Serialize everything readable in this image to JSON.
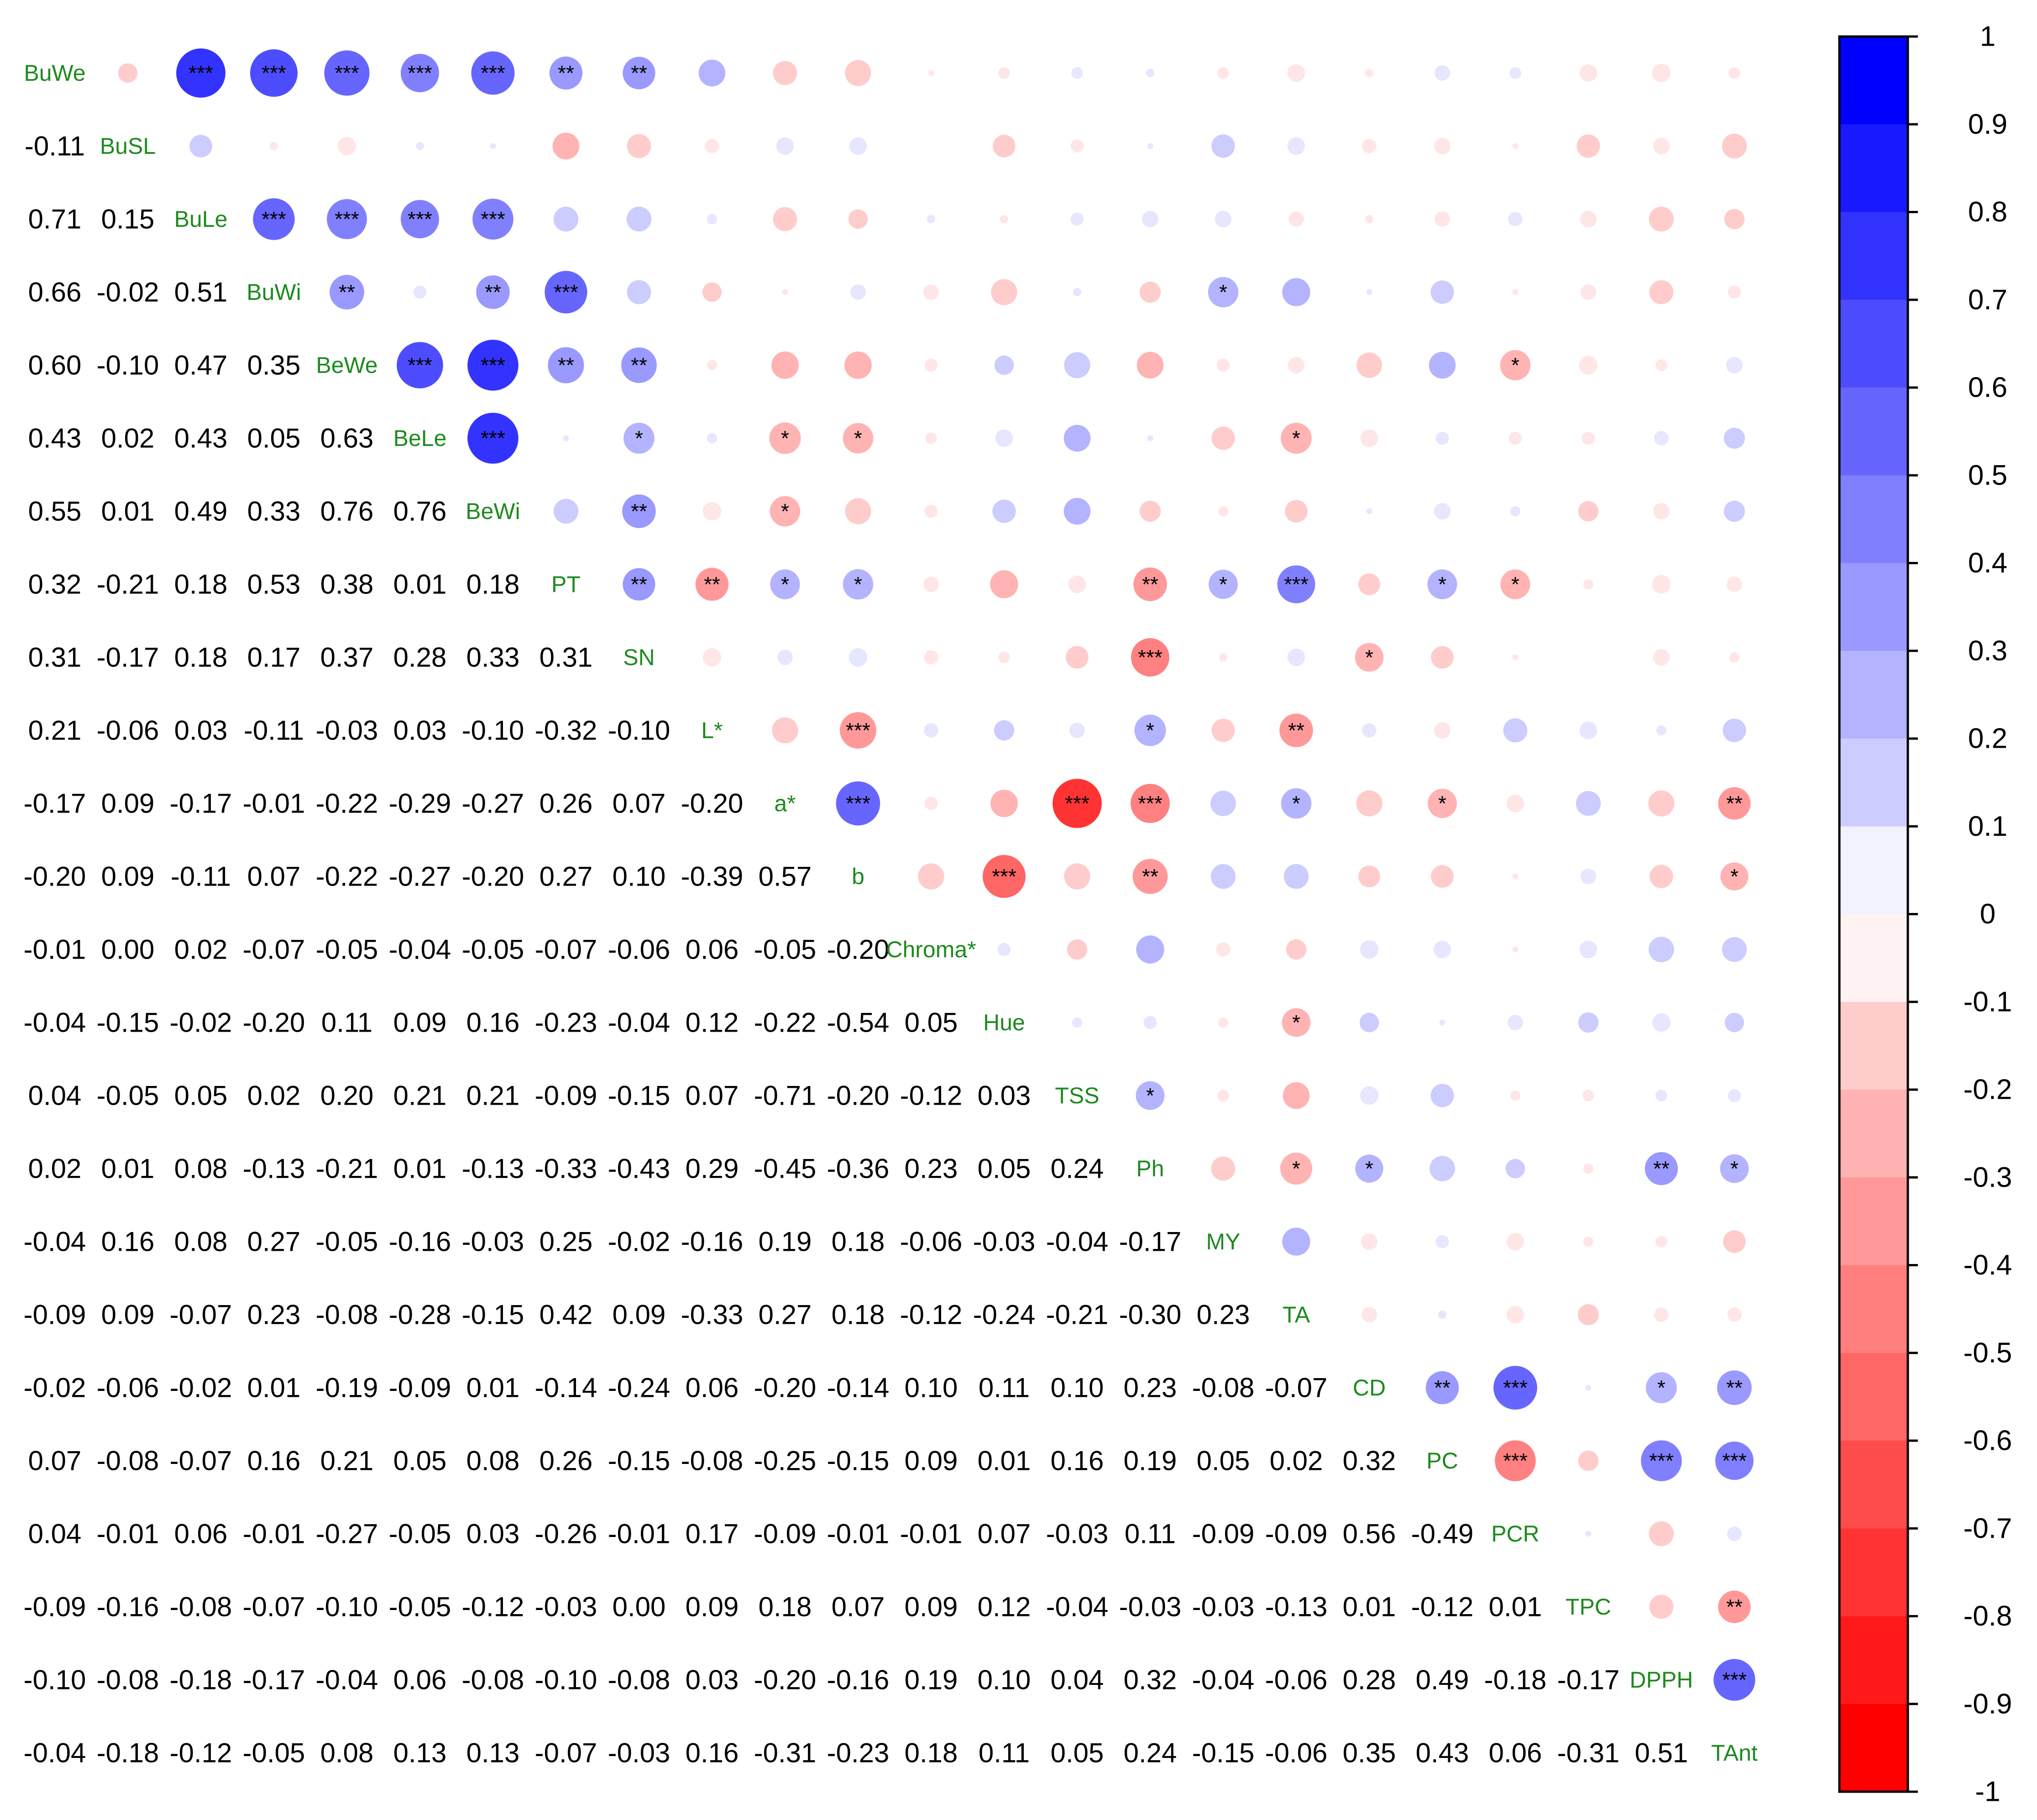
{
  "chart_data": {
    "type": "heatmap",
    "subtype": "correlation-matrix",
    "upper_triangle": "circles",
    "lower_triangle": "numbers",
    "variables": [
      "BuWe",
      "BuSL",
      "BuLe",
      "BuWi",
      "BeWe",
      "BeLe",
      "BeWi",
      "PT",
      "SN",
      "L*",
      "a*",
      "b",
      "Chroma*",
      "Hue",
      "TSS",
      "Ph",
      "MY",
      "TA",
      "CD",
      "PC",
      "PCR",
      "TPC",
      "DPPH",
      "TAnt"
    ],
    "lower": [
      [],
      [
        "-0.11"
      ],
      [
        "0.71",
        "0.15"
      ],
      [
        "0.66",
        "-0.02",
        "0.51"
      ],
      [
        "0.60",
        "-0.10",
        "0.47",
        "0.35"
      ],
      [
        "0.43",
        "0.02",
        "0.43",
        "0.05",
        "0.63"
      ],
      [
        "0.55",
        "0.01",
        "0.49",
        "0.33",
        "0.76",
        "0.76"
      ],
      [
        "0.32",
        "-0.21",
        "0.18",
        "0.53",
        "0.38",
        "0.01",
        "0.18"
      ],
      [
        "0.31",
        "-0.17",
        "0.18",
        "0.17",
        "0.37",
        "0.28",
        "0.33",
        "0.31"
      ],
      [
        "0.21",
        "-0.06",
        "0.03",
        "-0.11",
        "-0.03",
        "0.03",
        "-0.10",
        "-0.32",
        "-0.10"
      ],
      [
        "-0.17",
        "0.09",
        "-0.17",
        "-0.01",
        "-0.22",
        "-0.29",
        "-0.27",
        "0.26",
        "0.07",
        "-0.20"
      ],
      [
        "-0.20",
        "0.09",
        "-0.11",
        "0.07",
        "-0.22",
        "-0.27",
        "-0.20",
        "0.27",
        "0.10",
        "-0.39",
        "0.57"
      ],
      [
        "-0.01",
        "0.00",
        "0.02",
        "-0.07",
        "-0.05",
        "-0.04",
        "-0.05",
        "-0.07",
        "-0.06",
        "0.06",
        "-0.05",
        "-0.20"
      ],
      [
        "-0.04",
        "-0.15",
        "-0.02",
        "-0.20",
        "0.11",
        "0.09",
        "0.16",
        "-0.23",
        "-0.04",
        "0.12",
        "-0.22",
        "-0.54",
        "0.05"
      ],
      [
        "0.04",
        "-0.05",
        "0.05",
        "0.02",
        "0.20",
        "0.21",
        "0.21",
        "-0.09",
        "-0.15",
        "0.07",
        "-0.71",
        "-0.20",
        "-0.12",
        "0.03"
      ],
      [
        "0.02",
        "0.01",
        "0.08",
        "-0.13",
        "-0.21",
        "0.01",
        "-0.13",
        "-0.33",
        "-0.43",
        "0.29",
        "-0.45",
        "-0.36",
        "0.23",
        "0.05",
        "0.24"
      ],
      [
        "-0.04",
        "0.16",
        "0.08",
        "0.27",
        "-0.05",
        "-0.16",
        "-0.03",
        "0.25",
        "-0.02",
        "-0.16",
        "0.19",
        "0.18",
        "-0.06",
        "-0.03",
        "-0.04",
        "-0.17"
      ],
      [
        "-0.09",
        "0.09",
        "-0.07",
        "0.23",
        "-0.08",
        "-0.28",
        "-0.15",
        "0.42",
        "0.09",
        "-0.33",
        "0.27",
        "0.18",
        "-0.12",
        "-0.24",
        "-0.21",
        "-0.30",
        "0.23"
      ],
      [
        "-0.02",
        "-0.06",
        "-0.02",
        "0.01",
        "-0.19",
        "-0.09",
        "0.01",
        "-0.14",
        "-0.24",
        "0.06",
        "-0.20",
        "-0.14",
        "0.10",
        "0.11",
        "0.10",
        "0.23",
        "-0.08",
        "-0.07"
      ],
      [
        "0.07",
        "-0.08",
        "-0.07",
        "0.16",
        "0.21",
        "0.05",
        "0.08",
        "0.26",
        "-0.15",
        "-0.08",
        "-0.25",
        "-0.15",
        "0.09",
        "0.01",
        "0.16",
        "0.19",
        "0.05",
        "0.02",
        "0.32"
      ],
      [
        "0.04",
        "-0.01",
        "0.06",
        "-0.01",
        "-0.27",
        "-0.05",
        "0.03",
        "-0.26",
        "-0.01",
        "0.17",
        "-0.09",
        "-0.01",
        "-0.01",
        "0.07",
        "-0.03",
        "0.11",
        "-0.09",
        "-0.09",
        "0.56",
        "-0.49"
      ],
      [
        "-0.09",
        "-0.16",
        "-0.08",
        "-0.07",
        "-0.10",
        "-0.05",
        "-0.12",
        "-0.03",
        "0.00",
        "0.09",
        "0.18",
        "0.07",
        "0.09",
        "0.12",
        "-0.04",
        "-0.03",
        "-0.03",
        "-0.13",
        "0.01",
        "-0.12",
        "0.01"
      ],
      [
        "-0.10",
        "-0.08",
        "-0.18",
        "-0.17",
        "-0.04",
        "0.06",
        "-0.08",
        "-0.10",
        "-0.08",
        "0.03",
        "-0.20",
        "-0.16",
        "0.19",
        "0.10",
        "0.04",
        "0.32",
        "-0.04",
        "-0.06",
        "0.28",
        "0.49",
        "-0.18",
        "-0.17"
      ],
      [
        "-0.04",
        "-0.18",
        "-0.12",
        "-0.05",
        "0.08",
        "0.13",
        "0.13",
        "-0.07",
        "-0.03",
        "0.16",
        "-0.31",
        "-0.23",
        "0.18",
        "0.11",
        "0.05",
        "0.24",
        "-0.15",
        "-0.06",
        "0.35",
        "0.43",
        "0.06",
        "-0.31",
        "0.51"
      ]
    ],
    "significance": [
      [
        "BuWe",
        "BuLe",
        "***"
      ],
      [
        "BuWe",
        "BuWi",
        "***"
      ],
      [
        "BuWe",
        "BeWe",
        "***"
      ],
      [
        "BuWe",
        "BeLe",
        "***"
      ],
      [
        "BuWe",
        "BeWi",
        "***"
      ],
      [
        "BuWe",
        "PT",
        "**"
      ],
      [
        "BuWe",
        "SN",
        "**"
      ],
      [
        "BuLe",
        "BuWi",
        "***"
      ],
      [
        "BuLe",
        "BeWe",
        "***"
      ],
      [
        "BuLe",
        "BeLe",
        "***"
      ],
      [
        "BuLe",
        "BeWi",
        "***"
      ],
      [
        "BuWi",
        "BeWe",
        "**"
      ],
      [
        "BuWi",
        "BeWi",
        "**"
      ],
      [
        "BuWi",
        "PT",
        "***"
      ],
      [
        "BuWi",
        "MY",
        "*"
      ],
      [
        "BeWe",
        "BeLe",
        "***"
      ],
      [
        "BeWe",
        "BeWi",
        "***"
      ],
      [
        "BeWe",
        "PT",
        "**"
      ],
      [
        "BeWe",
        "SN",
        "**"
      ],
      [
        "BeWe",
        "PCR",
        "*"
      ],
      [
        "BeLe",
        "BeWi",
        "***"
      ],
      [
        "BeLe",
        "SN",
        "*"
      ],
      [
        "BeLe",
        "a*",
        "*"
      ],
      [
        "BeLe",
        "b",
        "*"
      ],
      [
        "BeLe",
        "TA",
        "*"
      ],
      [
        "BeWi",
        "SN",
        "**"
      ],
      [
        "BeWi",
        "a*",
        "*"
      ],
      [
        "PT",
        "SN",
        "**"
      ],
      [
        "PT",
        "L*",
        "**"
      ],
      [
        "PT",
        "a*",
        "*"
      ],
      [
        "PT",
        "b",
        "*"
      ],
      [
        "PT",
        "Ph",
        "**"
      ],
      [
        "PT",
        "MY",
        "*"
      ],
      [
        "PT",
        "TA",
        "***"
      ],
      [
        "PT",
        "PC",
        "*"
      ],
      [
        "PT",
        "PCR",
        "*"
      ],
      [
        "SN",
        "Ph",
        "***"
      ],
      [
        "SN",
        "CD",
        "*"
      ],
      [
        "L*",
        "b",
        "***"
      ],
      [
        "L*",
        "Ph",
        "*"
      ],
      [
        "L*",
        "TA",
        "**"
      ],
      [
        "a*",
        "b",
        "***"
      ],
      [
        "a*",
        "TSS",
        "***"
      ],
      [
        "a*",
        "Ph",
        "***"
      ],
      [
        "a*",
        "TA",
        "*"
      ],
      [
        "a*",
        "PC",
        "*"
      ],
      [
        "a*",
        "TAnt",
        "**"
      ],
      [
        "b",
        "Hue",
        "***"
      ],
      [
        "b",
        "Ph",
        "**"
      ],
      [
        "b",
        "TAnt",
        "*"
      ],
      [
        "Hue",
        "TA",
        "*"
      ],
      [
        "TSS",
        "Ph",
        "*"
      ],
      [
        "Ph",
        "TA",
        "*"
      ],
      [
        "Ph",
        "CD",
        "*"
      ],
      [
        "Ph",
        "DPPH",
        "**"
      ],
      [
        "Ph",
        "TAnt",
        "*"
      ],
      [
        "CD",
        "PC",
        "**"
      ],
      [
        "CD",
        "PCR",
        "***"
      ],
      [
        "CD",
        "DPPH",
        "*"
      ],
      [
        "CD",
        "TAnt",
        "**"
      ],
      [
        "PC",
        "PCR",
        "***"
      ],
      [
        "PC",
        "DPPH",
        "***"
      ],
      [
        "PC",
        "TAnt",
        "***"
      ],
      [
        "TPC",
        "TAnt",
        "**"
      ],
      [
        "DPPH",
        "TAnt",
        "***"
      ]
    ],
    "colorbar": {
      "ticks": [
        "1",
        "0.9",
        "0.8",
        "0.7",
        "0.6",
        "0.5",
        "0.4",
        "0.3",
        "0.2",
        "0.1",
        "0",
        "-0.1",
        "-0.2",
        "-0.3",
        "-0.4",
        "-0.5",
        "-0.6",
        "-0.7",
        "-0.8",
        "-0.9",
        "-1"
      ],
      "range": [
        -1,
        1
      ],
      "bins": 20
    },
    "colors": {
      "positive": "#0000FF",
      "negative": "#FF0000",
      "neutral": "#FFFFFF",
      "diag_label": "#1E8A1E",
      "text": "#000000"
    }
  }
}
